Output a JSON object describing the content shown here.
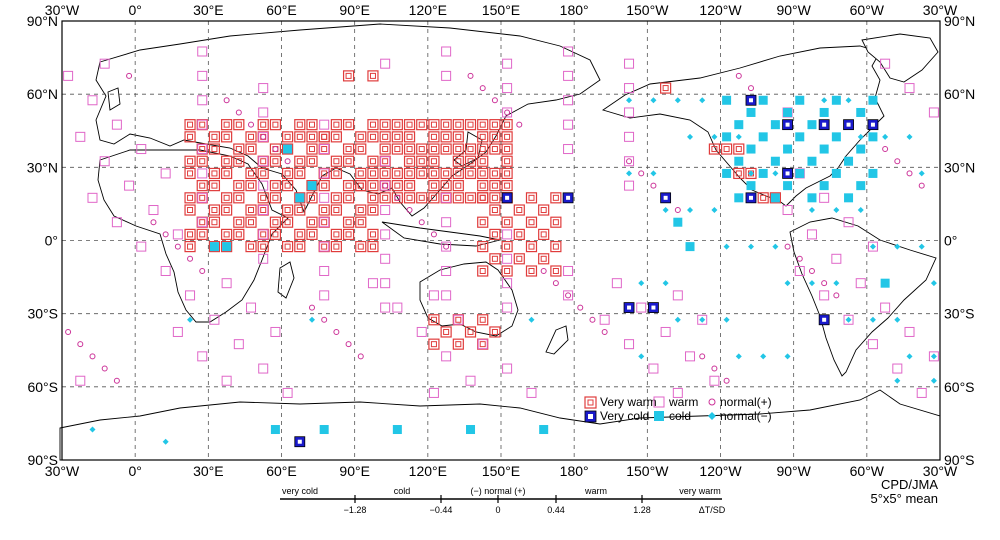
{
  "map": {
    "lon_labels": [
      "30°W",
      "0°",
      "30°E",
      "60°E",
      "90°E",
      "120°E",
      "150°E",
      "180°",
      "150°W",
      "120°W",
      "90°W",
      "60°W",
      "30°W"
    ],
    "lat_labels": [
      "90°N",
      "60°N",
      "30°N",
      "0°",
      "30°S",
      "60°S",
      "90°S"
    ],
    "colors": {
      "very_warm": "#e03c3c",
      "warm": "#e066c8",
      "very_cold": "#1a1acc",
      "cold": "#22c6e6",
      "normal_plus": "#cc3399",
      "normal_minus": "#22c6e6"
    }
  },
  "legend": {
    "very_warm": "Very warm",
    "very_cold": "Very cold",
    "warm": "warm",
    "cold": "cold",
    "normal_plus": "normal(+)",
    "normal_minus": "normal(−)"
  },
  "scale": {
    "categories": [
      "very cold",
      "cold",
      "(−) normal (+)",
      "warm",
      "very warm"
    ],
    "ticks": [
      "−1.28",
      "−0.44",
      "0",
      "0.44",
      "1.28"
    ],
    "unit": "ΔT/SD"
  },
  "credit": {
    "agency": "CPD/JMA",
    "resolution": "5°x5° mean"
  }
}
